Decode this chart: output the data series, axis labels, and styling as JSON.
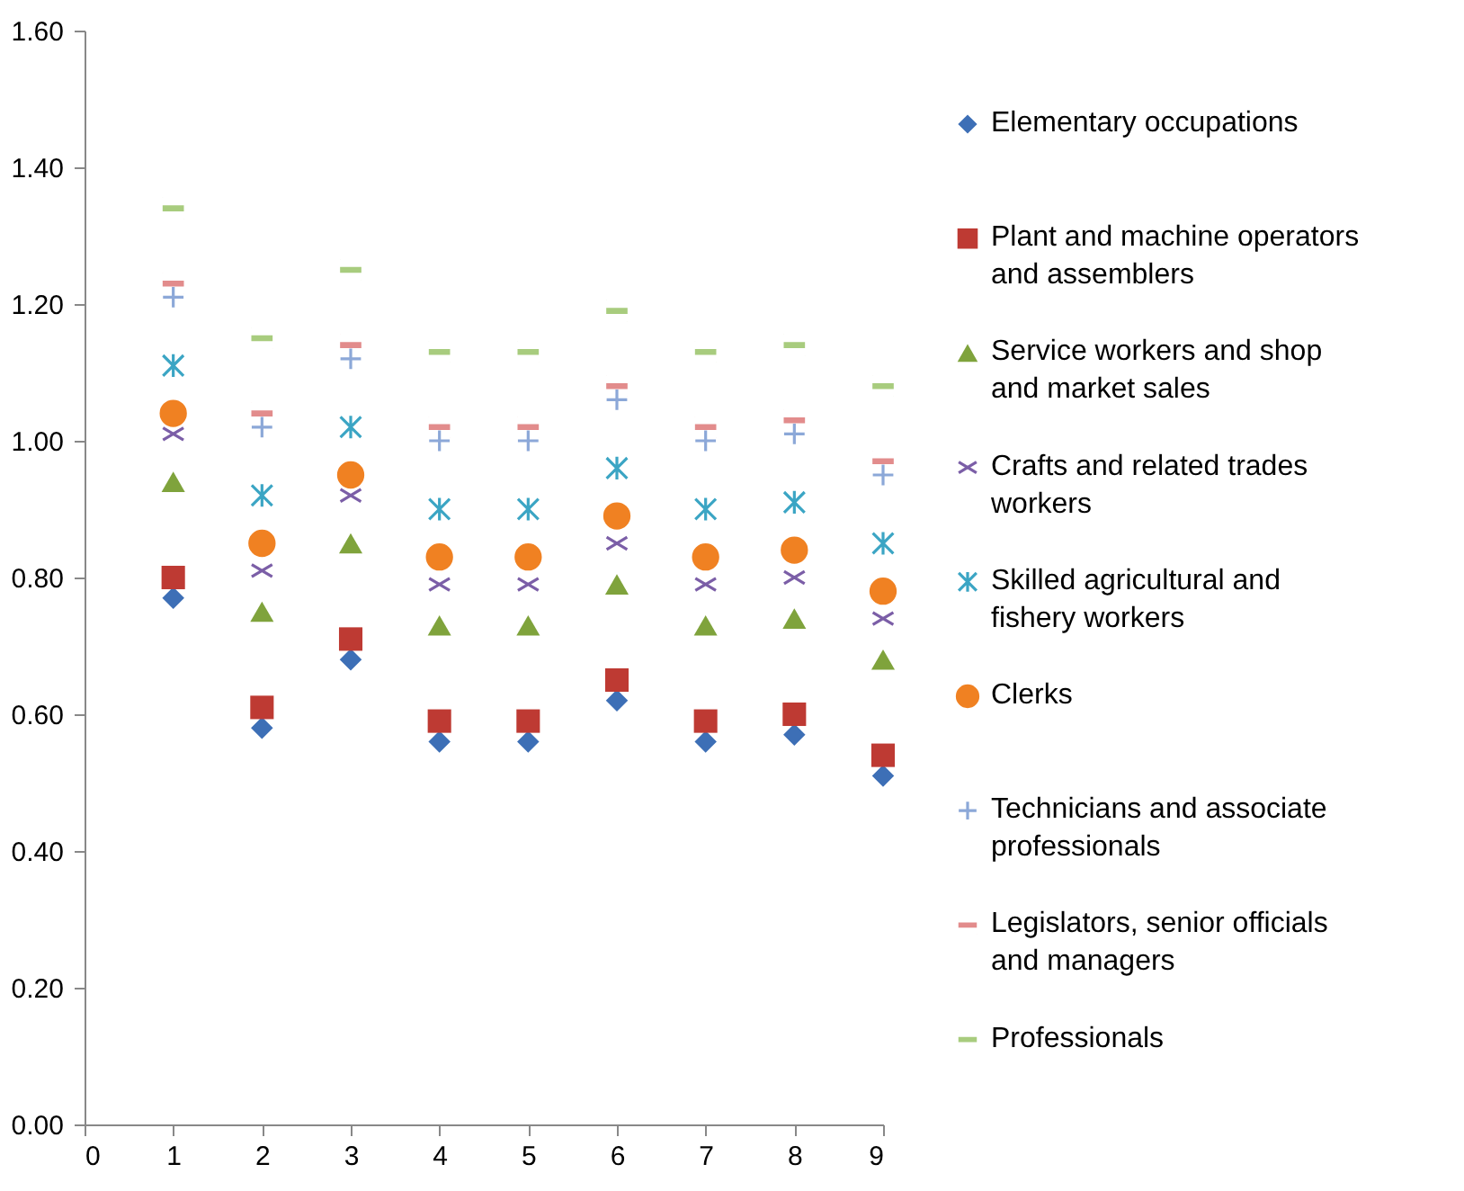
{
  "chart_data": {
    "type": "scatter",
    "x": [
      1,
      2,
      3,
      4,
      5,
      6,
      7,
      8,
      9
    ],
    "xlim": [
      0,
      9
    ],
    "xticks": [
      0,
      1,
      2,
      3,
      4,
      5,
      6,
      7,
      8,
      9
    ],
    "ylim": [
      0,
      1.6
    ],
    "yticks": [
      {
        "value": 0,
        "label": "0.00"
      },
      {
        "value": 0.2,
        "label": "0.20"
      },
      {
        "value": 0.4,
        "label": "0.40"
      },
      {
        "value": 0.6,
        "label": "0.60"
      },
      {
        "value": 0.8,
        "label": "0.80"
      },
      {
        "value": 1.0,
        "label": "1.00"
      },
      {
        "value": 1.2,
        "label": "1.20"
      },
      {
        "value": 1.4,
        "label": "1.40"
      },
      {
        "value": 1.6,
        "label": "1.60"
      }
    ],
    "grid": false,
    "legend": "right",
    "series": [
      {
        "name": "Elementary occupations",
        "color": "#3d6fb6",
        "marker": "diamond",
        "values": [
          0.77,
          0.58,
          0.68,
          0.56,
          0.56,
          0.62,
          0.56,
          0.57,
          0.51
        ]
      },
      {
        "name": "Plant and machine operators and assemblers",
        "color": "#be3a33",
        "marker": "square",
        "values": [
          0.8,
          0.61,
          0.71,
          0.59,
          0.59,
          0.65,
          0.59,
          0.6,
          0.54
        ]
      },
      {
        "name": "Service workers and shop and market sales",
        "color": "#7fa33c",
        "marker": "triangle",
        "values": [
          0.94,
          0.75,
          0.85,
          0.73,
          0.73,
          0.79,
          0.73,
          0.74,
          0.68
        ]
      },
      {
        "name": "Crafts and related trades workers",
        "color": "#7b5ea7",
        "marker": "x",
        "values": [
          1.01,
          0.81,
          0.92,
          0.79,
          0.79,
          0.85,
          0.79,
          0.8,
          0.74
        ]
      },
      {
        "name": " Skilled agricultural and fishery workers",
        "color": "#3ba5c4",
        "marker": "cross",
        "values": [
          1.11,
          0.92,
          1.02,
          0.9,
          0.9,
          0.96,
          0.9,
          0.91,
          0.85
        ]
      },
      {
        "name": "Clerks",
        "color": "#f08122",
        "marker": "circle",
        "values": [
          1.04,
          0.85,
          0.95,
          0.83,
          0.83,
          0.89,
          0.83,
          0.84,
          0.78
        ]
      },
      {
        "name": "Technicians and associate professionals",
        "color": "#8ca8d8",
        "marker": "plus",
        "values": [
          1.21,
          1.02,
          1.12,
          1.0,
          1.0,
          1.06,
          1.0,
          1.01,
          0.95
        ]
      },
      {
        "name": "Legislators, senior officials and managers",
        "color": "#e28c8c",
        "values": [
          1.23,
          1.04,
          1.14,
          1.02,
          1.02,
          1.08,
          1.02,
          1.03,
          0.97
        ]
      },
      {
        "name": "Professionals",
        "color": "#a8cc7e",
        "values": [
          1.34,
          1.15,
          1.25,
          1.13,
          1.13,
          1.19,
          1.13,
          1.14,
          1.08
        ]
      }
    ]
  }
}
